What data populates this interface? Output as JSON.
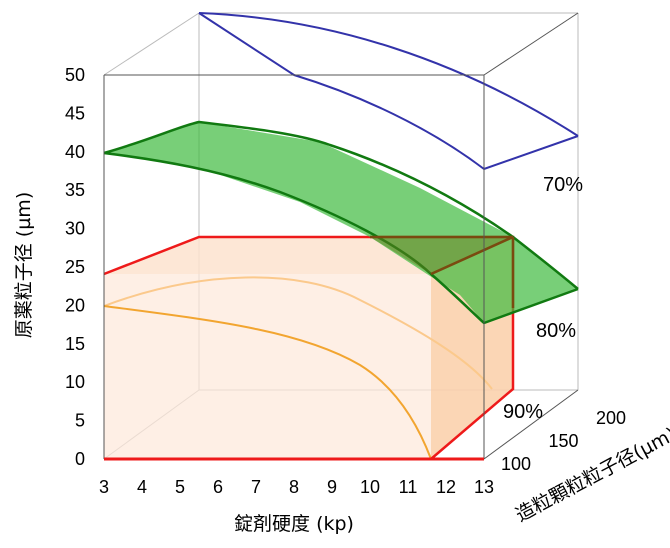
{
  "chart_data": {
    "type": "3d-surface",
    "xlabel": "錠剤硬度 (kp)",
    "ylabel": "原薬粒子径 (µm)",
    "zlabel": "造粒顆粒粒子径(µm)",
    "xlim": [
      3,
      13
    ],
    "ylim": [
      0,
      50
    ],
    "zlim": [
      100,
      200
    ],
    "x_ticks": [
      "3",
      "4",
      "5",
      "6",
      "7",
      "8",
      "9",
      "10",
      "11",
      "12",
      "13"
    ],
    "y_ticks": [
      "0",
      "5",
      "10",
      "15",
      "20",
      "25",
      "30",
      "35",
      "40",
      "45",
      "50"
    ],
    "z_ticks": [
      "100",
      "150",
      "200"
    ],
    "series": [
      {
        "name": "70%",
        "color": "#3333aa",
        "front_edge": [
          [
            3,
            50
          ],
          [
            5.8,
            47.5
          ],
          [
            8.5,
            43.5
          ],
          [
            10.5,
            38.5
          ],
          [
            11.5,
            36.5
          ]
        ],
        "back_edge": [
          [
            3,
            50
          ],
          [
            5.8,
            50
          ],
          [
            8.5,
            47.5
          ],
          [
            10.5,
            43.5
          ],
          [
            11.5,
            40
          ]
        ]
      },
      {
        "name": "80%",
        "color": "#22aa22",
        "front_edge": [
          [
            3,
            40
          ],
          [
            4,
            39
          ],
          [
            5.5,
            37.5
          ],
          [
            7,
            35.5
          ],
          [
            8.5,
            33
          ],
          [
            10,
            30
          ],
          [
            11.5,
            26
          ],
          [
            12.3,
            20
          ]
        ],
        "back_edge": [
          [
            3,
            40
          ],
          [
            4,
            41.5
          ],
          [
            5.5,
            44
          ],
          [
            7,
            42
          ],
          [
            8.5,
            39.5
          ],
          [
            10,
            35.5
          ],
          [
            11.5,
            29
          ],
          [
            12.3,
            23
          ]
        ]
      },
      {
        "name": "90%",
        "color": "#f5a020",
        "curve": [
          [
            3,
            20
          ],
          [
            4,
            19.5
          ],
          [
            5,
            18.5
          ],
          [
            6,
            17.5
          ],
          [
            7,
            16
          ],
          [
            8,
            14
          ],
          [
            9,
            11
          ],
          [
            10,
            7
          ],
          [
            11,
            2
          ],
          [
            11.5,
            0
          ]
        ],
        "region_x": [
          3,
          11.5
        ],
        "region_y": [
          0,
          24
        ]
      }
    ],
    "box": true,
    "legend": "inline labels at right"
  }
}
